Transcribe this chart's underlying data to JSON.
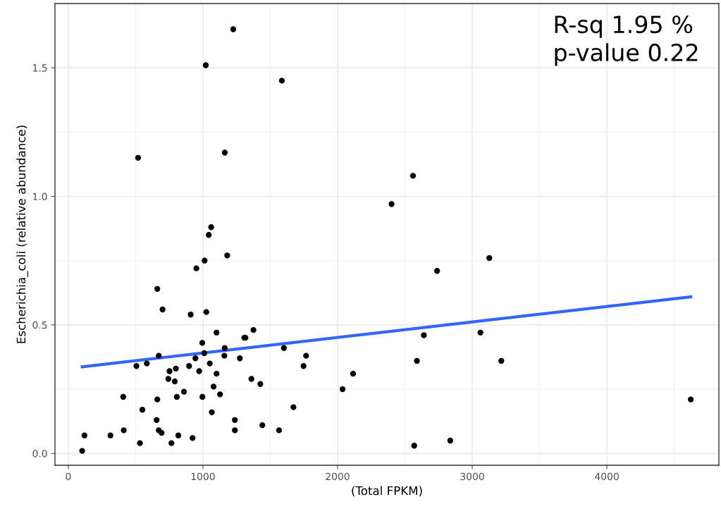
{
  "chart_data": {
    "type": "scatter",
    "xlabel": "(Total FPKM)",
    "ylabel": "Escherichia_coli (relative abundance)",
    "annotations": [
      "R-sq 1.95 %\np-value 0.22"
    ],
    "xlim": [
      -99,
      4832
    ],
    "ylim": [
      -0.046,
      1.743
    ],
    "xticks": [
      0,
      1000,
      2000,
      3000,
      4000
    ],
    "yticks": [
      {
        "value": 0,
        "label": "0.0"
      },
      0.5,
      {
        "value": 1,
        "label": "1.0"
      },
      1.5
    ],
    "grid": true,
    "series": [
      {
        "marker": "circle",
        "color": "#000000",
        "x": [
          103,
          120,
          313,
          412,
          408,
          532,
          550,
          506,
          583,
          656,
          661,
          672,
          693,
          672,
          661,
          700,
          752,
          799,
          743,
          791,
          766,
          817,
          806,
          859,
          897,
          923,
          944,
          972,
          909,
          951,
          1012,
          1043,
          1061,
          1025,
          995,
          1010,
          996,
          1051,
          1066,
          1079,
          1101,
          1101,
          1127,
          1162,
          1159,
          1180,
          1237,
          1237,
          1274,
          1307,
          1316,
          1375,
          1360,
          1426,
          1441,
          1565,
          1601,
          1672,
          1747,
          1766,
          2037,
          2115,
          518,
          1021,
          1225,
          1586,
          1162,
          2401,
          2560,
          2739,
          3127,
          2641,
          3061,
          2589,
          3216,
          4623,
          2569,
          2837
        ],
        "values": [
          0.01,
          0.07,
          0.07,
          0.09,
          0.22,
          0.04,
          0.17,
          0.34,
          0.35,
          0.13,
          0.21,
          0.09,
          0.08,
          0.38,
          0.64,
          0.56,
          0.32,
          0.33,
          0.29,
          0.28,
          0.04,
          0.07,
          0.22,
          0.24,
          0.34,
          0.06,
          0.37,
          0.32,
          0.54,
          0.72,
          0.75,
          0.85,
          0.88,
          0.55,
          0.43,
          0.39,
          0.22,
          0.35,
          0.16,
          0.26,
          0.47,
          0.31,
          0.23,
          0.41,
          0.38,
          0.77,
          0.13,
          0.09,
          0.37,
          0.45,
          0.45,
          0.48,
          0.29,
          0.27,
          0.11,
          0.09,
          0.41,
          0.18,
          0.34,
          0.38,
          0.25,
          0.31,
          1.15,
          1.51,
          1.65,
          1.45,
          1.17,
          0.97,
          1.08,
          0.71,
          0.76,
          0.46,
          0.47,
          0.36,
          0.36,
          0.21,
          0.03,
          0.05
        ]
      },
      {
        "type": "line",
        "color": "#3366ff",
        "x": [
          103,
          4623
        ],
        "values": [
          0.337,
          0.609
        ]
      }
    ]
  }
}
